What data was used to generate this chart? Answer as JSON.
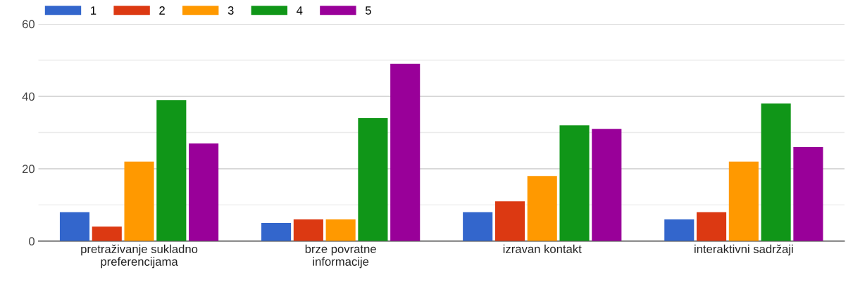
{
  "chart_data": {
    "type": "bar",
    "categories": [
      "pretraživanje sukladno preferencijama",
      "brze povratne informacije",
      "izravan kontakt",
      "interaktivni sadržaji"
    ],
    "series": [
      {
        "name": "1",
        "color": "#3366cc",
        "values": [
          8,
          5,
          8,
          6
        ]
      },
      {
        "name": "2",
        "color": "#dc3912",
        "values": [
          4,
          6,
          11,
          8
        ]
      },
      {
        "name": "3",
        "color": "#ff9900",
        "values": [
          22,
          6,
          18,
          22
        ]
      },
      {
        "name": "4",
        "color": "#109618",
        "values": [
          39,
          34,
          32,
          38
        ]
      },
      {
        "name": "5",
        "color": "#990099",
        "values": [
          27,
          49,
          31,
          26
        ]
      }
    ],
    "ylim": [
      0,
      60
    ],
    "yticks": [
      0,
      {
        "value": 10,
        "label": null
      },
      20,
      {
        "value": 30,
        "label": null
      },
      40,
      {
        "value": 50,
        "label": null
      },
      60
    ],
    "grid": "y",
    "legend": "top left"
  }
}
